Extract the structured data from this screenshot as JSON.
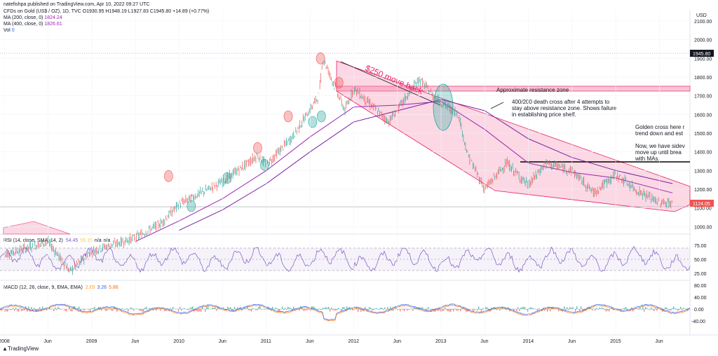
{
  "header": {
    "publisher": "natefishpa published on TradingView.com, Apr 10, 2022 09:27 UTC",
    "symbol_line": "CFDs on Gold (US$ / OZ), 1D, TVC  O1930.95  H1948.19  L1927.83  C1945.80  +14.89 (+0.77%)",
    "ma200": "MA (200, close, 0)",
    "ma200_val": "1824.24",
    "ma400": "MA (400, close, 0)",
    "ma400_val": "1826.61",
    "vol": "Vol",
    "vol_val": "0"
  },
  "footer": {
    "brand": "TradingView"
  },
  "colors": {
    "up": "#26a69a",
    "down": "#ef5350",
    "ma200": "#9c27b0",
    "ma400": "#7b1fa2",
    "zone": "#f8bbd0",
    "rsi": "#7e57c2",
    "macd": "#2962ff",
    "signal": "#ff6d00"
  },
  "chart_data": [
    {
      "type": "line",
      "title": "CFDs on Gold (US$ / OZ), 1D",
      "currency": "USD",
      "x_labels": [
        "2008",
        "Jun",
        "2009",
        "Jun",
        "2010",
        "Jun",
        "2011",
        "Jun",
        "2012",
        "Jun",
        "2013",
        "Jun",
        "2014",
        "Jun",
        "2015",
        "Jun"
      ],
      "y_ticks": [
        1000,
        1100,
        1200,
        1300,
        1400,
        1500,
        1600,
        1700,
        1800,
        1900,
        2000,
        2100
      ],
      "ylim": [
        960,
        2160
      ],
      "last_price": "1945.80",
      "current_price_label": "1124.05",
      "series": [
        {
          "name": "Price",
          "x": [
            2008.0,
            2008.5,
            2008.75,
            2009.0,
            2009.5,
            2009.8,
            2010.0,
            2010.5,
            2010.9,
            2011.0,
            2011.3,
            2011.6,
            2011.65,
            2011.9,
            2012.0,
            2012.4,
            2012.75,
            2012.95,
            2013.2,
            2013.3,
            2013.5,
            2013.75,
            2014.0,
            2014.2,
            2014.5,
            2014.75,
            2015.0,
            2015.25,
            2015.5,
            2015.65
          ],
          "values": [
            850,
            920,
            760,
            870,
            940,
            1020,
            1120,
            1240,
            1380,
            1330,
            1480,
            1700,
            1900,
            1620,
            1740,
            1560,
            1790,
            1680,
            1600,
            1390,
            1200,
            1340,
            1220,
            1340,
            1300,
            1180,
            1280,
            1190,
            1130,
            1124
          ]
        },
        {
          "name": "MA (200, close, 0)",
          "x": [
            2009.5,
            2010.0,
            2010.5,
            2011.0,
            2011.5,
            2012.0,
            2012.5,
            2013.0,
            2013.5,
            2014.0,
            2014.5,
            2015.0,
            2015.65
          ],
          "values": [
            920,
            1030,
            1150,
            1300,
            1480,
            1640,
            1650,
            1670,
            1520,
            1340,
            1290,
            1260,
            1180
          ]
        },
        {
          "name": "MA (400, close, 0)",
          "x": [
            2010.0,
            2010.5,
            2011.0,
            2011.5,
            2012.0,
            2012.5,
            2013.0,
            2013.5,
            2014.0,
            2014.5,
            2015.0,
            2015.65
          ],
          "values": [
            980,
            1090,
            1230,
            1400,
            1560,
            1620,
            1680,
            1620,
            1470,
            1370,
            1300,
            1230
          ]
        }
      ],
      "annotations": [
        "$250 move back",
        "Approximate resistance zone",
        "400/200 death cross after 4 attempts to",
        "stay above resistance zone.  Shows failure",
        "in establishing price shelf.",
        "Golden cross here r",
        "trend down and est",
        "Now, we have sidev",
        "move up until brea",
        "with MAs."
      ]
    },
    {
      "type": "line",
      "title": "RSI (14, close, SMA, 14, 2)",
      "legend_values": [
        "54.45",
        "55.15",
        "n/a",
        "n/a"
      ],
      "y_ticks": [
        25.0,
        50.0,
        75.0
      ],
      "band": [
        30,
        70
      ]
    },
    {
      "type": "bar",
      "title": "MACD (12, 26, close, 9, EMA, EMA)",
      "legend_values": [
        "2.60",
        "3.26",
        "5.86"
      ],
      "y_ticks": [
        -40.0,
        0.0,
        40.0,
        80.0
      ]
    }
  ]
}
